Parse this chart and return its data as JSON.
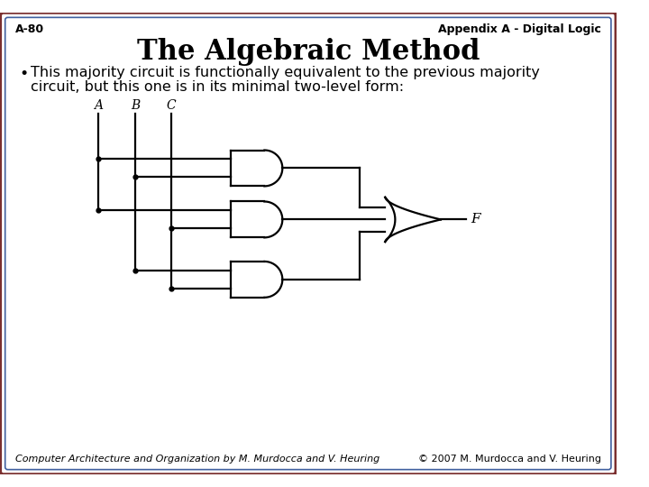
{
  "title": "The Algebraic Method",
  "header_left": "A-80",
  "header_right": "Appendix A - Digital Logic",
  "footer_left": "Computer Architecture and Organization by M. Murdocca and V. Heuring",
  "footer_right": "© 2007 M. Murdocca and V. Heuring",
  "bullet_line1": "This majority circuit is functionally equivalent to the previous majority",
  "bullet_line2": "circuit, but this one is in its minimal two-level form:",
  "background_color": "#ffffff",
  "border_color_outer": "#7B3030",
  "border_color_inner": "#4060A0",
  "title_fontsize": 22,
  "header_fontsize": 9,
  "bullet_fontsize": 11.5,
  "footer_fontsize": 8
}
